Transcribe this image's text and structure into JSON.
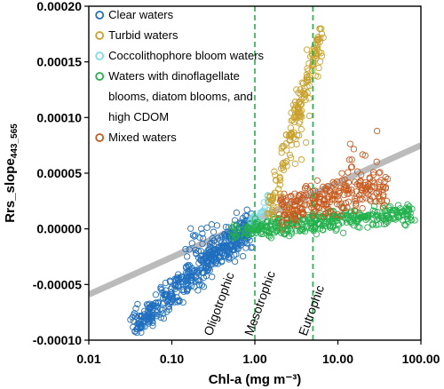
{
  "chart_data": {
    "type": "scatter",
    "xlabel": "Chl-a (mg m⁻³)",
    "ylabel": "Rrs_slope",
    "ylabel_subscript": "443_565",
    "xscale": "log",
    "xlim": [
      0.01,
      100
    ],
    "ylim": [
      -0.0001,
      0.0002
    ],
    "x_ticks": [
      "0.01",
      "0.10",
      "1.00",
      "10.00",
      "100.00"
    ],
    "y_ticks": [
      "-0.00010",
      "-0.00005",
      "0.00000",
      "0.00005",
      "0.00010",
      "0.00015",
      "0.00020"
    ],
    "legend": {
      "placement": "top-left",
      "entries": [
        {
          "lines": [
            "Clear waters"
          ],
          "color": "#1f6fbf"
        },
        {
          "lines": [
            "Turbid waters"
          ],
          "color": "#c9a12a"
        },
        {
          "lines": [
            "Coccolithophore bloom waters"
          ],
          "color": "#7fd9e6"
        },
        {
          "lines": [
            "Waters with dinoflagellate",
            "blooms, diatom blooms, and",
            "high CDOM"
          ],
          "color": "#22b14c"
        },
        {
          "lines": [
            "Mixed waters"
          ],
          "color": "#c85a1e"
        }
      ]
    },
    "vertical_lines": [
      {
        "x": 1.0,
        "color": "#22b14c",
        "style": "dashed"
      },
      {
        "x": 5.0,
        "color": "#22b14c",
        "style": "dashed"
      }
    ],
    "trend_line": {
      "x": [
        0.01,
        100
      ],
      "y": [
        -5.9e-05,
        7.5e-05
      ],
      "color": "#bbbbbb"
    },
    "zone_labels": [
      {
        "text": "Oligotrophic",
        "x": 0.47,
        "y": -0.0001
      },
      {
        "text": "Mesotrophic",
        "x": 1.45,
        "y": -0.0001
      },
      {
        "text": "Eutrophic",
        "x": 6.5,
        "y": -0.0001
      }
    ],
    "series": [
      {
        "key": "clear",
        "color": "#1f6fbf",
        "clusters": [
          {
            "n": 420,
            "x_range": [
              0.035,
              0.9
            ],
            "y_at_min": -8.8e-05,
            "y_at_max": 3.5e-06,
            "spread": 7e-06
          },
          {
            "n": 80,
            "x_range": [
              0.15,
              0.9
            ],
            "y_at_min": -2e-05,
            "y_at_max": -5e-06,
            "spread": 9e-06
          }
        ]
      },
      {
        "key": "turbid",
        "color": "#c9a12a",
        "clusters": [
          {
            "n": 150,
            "x_range": [
              1.5,
              6.5
            ],
            "y_at_min": 1.8e-05,
            "y_at_max": 0.00018,
            "spread": 8e-06
          },
          {
            "n": 40,
            "x_range": [
              1.8,
              6.0
            ],
            "y_at_min": 3e-05,
            "y_at_max": 0.00016,
            "spread": 1.8e-05
          }
        ]
      },
      {
        "key": "coccolithophore",
        "color": "#7fd9e6",
        "clusters": [
          {
            "n": 40,
            "x_range": [
              0.9,
              1.5
            ],
            "y_at_min": 0.0,
            "y_at_max": 2.5e-05,
            "spread": 6e-06
          }
        ]
      },
      {
        "key": "dinoflagellate",
        "color": "#22b14c",
        "clusters": [
          {
            "n": 340,
            "x_range": [
              1.0,
              80
            ],
            "y_at_min": 0.0,
            "y_at_max": 1.5e-05,
            "spread": 4.5e-06
          },
          {
            "n": 40,
            "x_range": [
              0.5,
              1.2
            ],
            "y_at_min": -4e-06,
            "y_at_max": 0.0,
            "spread": 4e-06
          }
        ]
      },
      {
        "key": "mixed",
        "color": "#c85a1e",
        "clusters": [
          {
            "n": 260,
            "x_range": [
              2.0,
              40
            ],
            "y_at_min": 1.8e-05,
            "y_at_max": 3.8e-05,
            "spread": 8.5e-06
          },
          {
            "n": 12,
            "x_range": [
              10,
              30
            ],
            "y_at_min": 6e-05,
            "y_at_max": 8e-05,
            "spread": 8e-06
          }
        ]
      }
    ]
  }
}
